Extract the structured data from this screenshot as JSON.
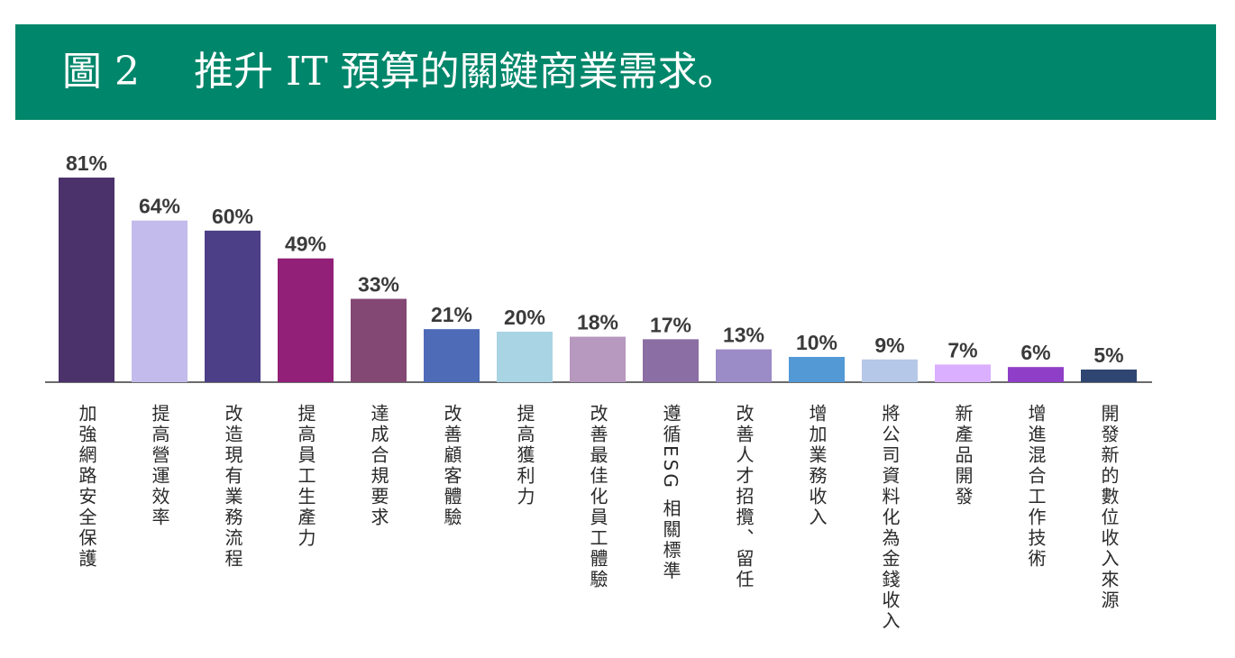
{
  "header": {
    "figure_number": "圖 2",
    "title": "推升 IT 預算的關鍵商業需求。"
  },
  "colors": {
    "header_bg": "#00866a",
    "header_text": "#ffffff",
    "axis": "#3a3a3a"
  },
  "chart_data": {
    "type": "bar",
    "title": "",
    "xlabel": "",
    "ylabel": "",
    "ylim": [
      0,
      81
    ],
    "grid": false,
    "legend": "none",
    "value_suffix": "%",
    "categories": [
      "加強網路安全保護",
      "提高營運效率",
      "改造現有業務流程",
      "提高員工生產力",
      "達成合規要求",
      "改善顧客體驗",
      "提高獲利力",
      "改善最佳化員工體驗",
      "遵循ESG 相關標準",
      "改善人才招攬、留任",
      "增加業務收入",
      "將公司資料化為金錢收入",
      "新產品開發",
      "增進混合工作技術",
      "開發新的數位收入來源"
    ],
    "values": [
      81,
      64,
      60,
      49,
      33,
      21,
      20,
      18,
      17,
      13,
      10,
      9,
      7,
      6,
      5
    ],
    "bar_colors": [
      "#4b326b",
      "#c3bbeb",
      "#4c3f87",
      "#922079",
      "#844874",
      "#4d6bb7",
      "#a9d4e4",
      "#b798be",
      "#8b6ea3",
      "#9b8bc6",
      "#5299d6",
      "#b6c8e7",
      "#dbafff",
      "#8f3fc7",
      "#2e4671"
    ]
  }
}
